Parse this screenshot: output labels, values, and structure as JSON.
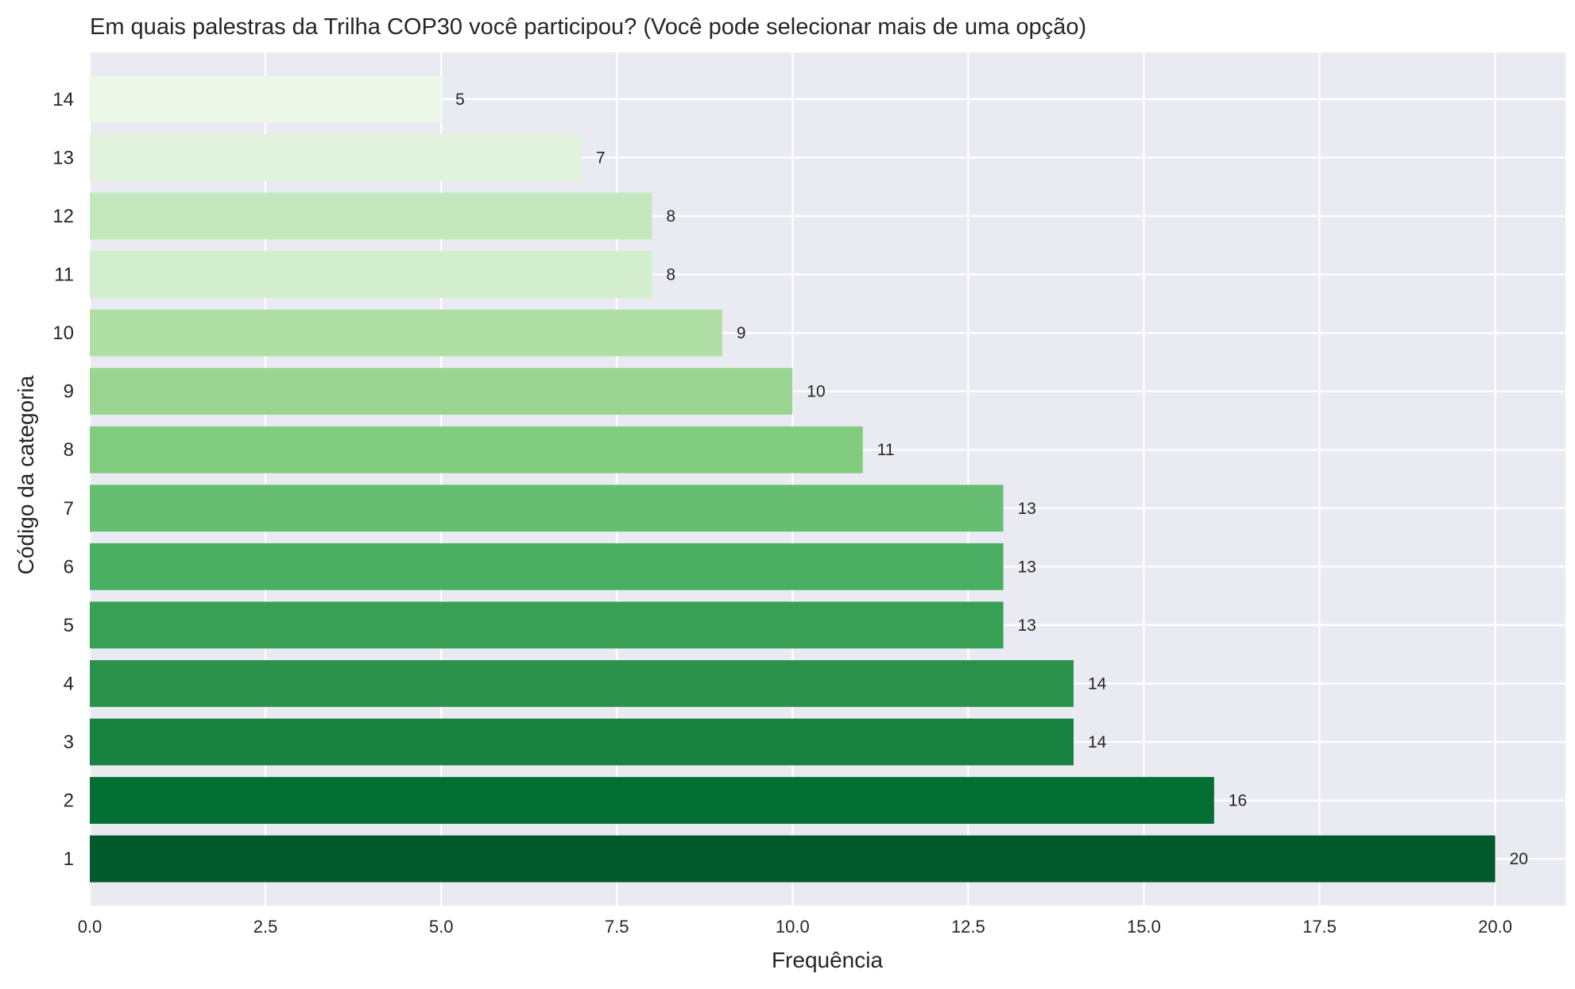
{
  "chart_data": {
    "type": "bar",
    "orientation": "horizontal",
    "title": "Em quais palestras da Trilha COP30 você participou? (Você pode selecionar mais de uma opção)",
    "xlabel": "Frequência",
    "ylabel": "Código da categoria",
    "categories": [
      "1",
      "2",
      "3",
      "4",
      "5",
      "6",
      "7",
      "8",
      "9",
      "10",
      "11",
      "12",
      "13",
      "14"
    ],
    "values": [
      20,
      16,
      14,
      14,
      13,
      13,
      13,
      11,
      10,
      9,
      8,
      8,
      7,
      5
    ],
    "value_labels": [
      "20",
      "16",
      "14",
      "14",
      "13",
      "13",
      "13",
      "11",
      "10",
      "9",
      "8",
      "8",
      "7",
      "5"
    ],
    "colors": [
      "#00592a",
      "#036f33",
      "#17813f",
      "#2a924b",
      "#38a055",
      "#4aaf62",
      "#66be72",
      "#81cc7f",
      "#9bd592",
      "#b0dfa6",
      "#d3eecd",
      "#c4e8bc",
      "#e1f3dc",
      "#edf8e9"
    ],
    "xlim": [
      0,
      21
    ],
    "xticks": [
      0,
      2.5,
      5,
      7.5,
      10,
      12.5,
      15,
      17.5,
      20
    ],
    "xtick_labels": [
      "0.0",
      "2.5",
      "5.0",
      "7.5",
      "10.0",
      "12.5",
      "15.0",
      "17.5",
      "20.0"
    ],
    "grid": true,
    "background": "#eaeaf2",
    "grid_color": "#ffffff"
  }
}
